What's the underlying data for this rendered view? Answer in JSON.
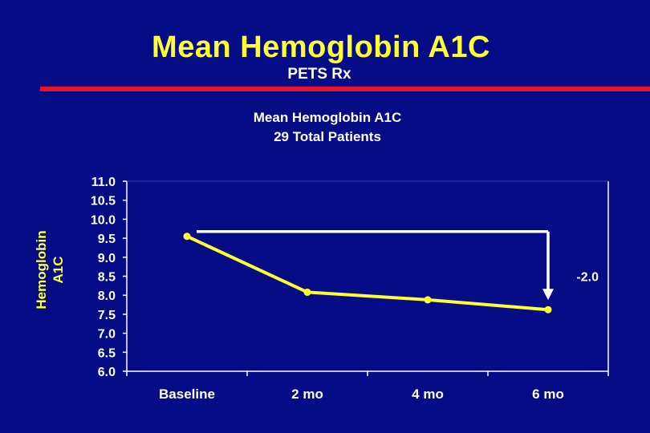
{
  "slide": {
    "title": "Mean Hemoglobin A1C",
    "subtitle": "PETS Rx"
  },
  "colors": {
    "background": "#050c86",
    "title": "#ffff33",
    "rule": "#e8102a",
    "series": "#ffff33",
    "annotation": "#ffffff",
    "axis": "#ffffff"
  },
  "chart_data": {
    "type": "line",
    "title": "Mean Hemoglobin A1C",
    "subtitle": "29 Total Patients",
    "xlabel": "",
    "ylabel": "Hemoglobin A1C",
    "categories": [
      "Baseline",
      "2 mo",
      "4 mo",
      "6 mo"
    ],
    "series": [
      {
        "name": "Mean Hemoglobin A1C",
        "values": [
          9.55,
          8.08,
          7.88,
          7.62
        ]
      }
    ],
    "ylim": [
      6.0,
      11.0
    ],
    "yticks": [
      "6.0",
      "6.5",
      "7.0",
      "7.5",
      "8.0",
      "8.5",
      "9.0",
      "9.5",
      "10.0",
      "10.5",
      "11.0"
    ],
    "grid": false,
    "annotation": {
      "label": "-2.0",
      "from_category": "Baseline",
      "to_category": "6 mo"
    }
  }
}
